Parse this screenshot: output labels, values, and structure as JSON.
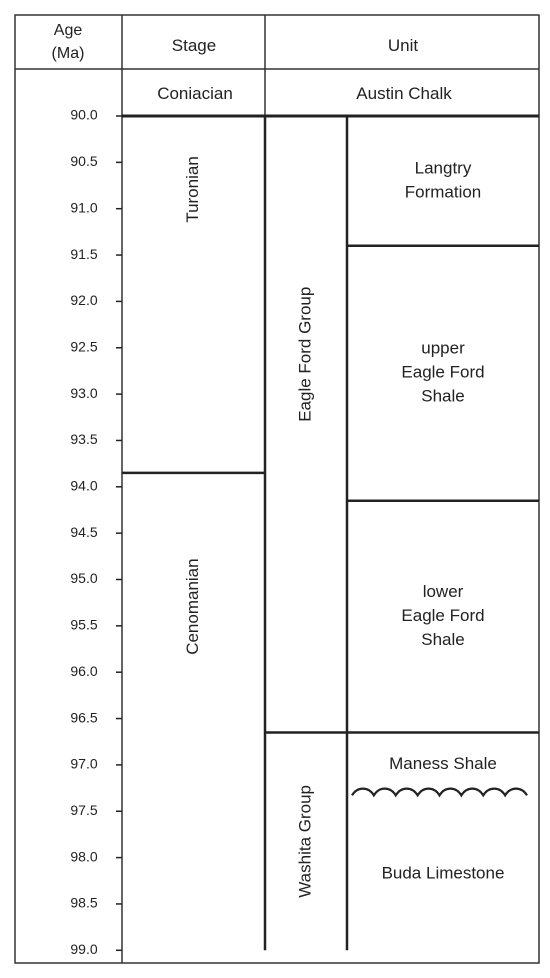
{
  "header": {
    "age_line1": "Age",
    "age_line2": "(Ma)",
    "stage": "Stage",
    "unit": "Unit"
  },
  "top_row": {
    "stage": "Coniacian",
    "unit": "Austin Chalk"
  },
  "age_axis": {
    "min": 90.0,
    "max": 99.0,
    "step": 0.5,
    "ticks": [
      "90.0",
      "90.5",
      "91.0",
      "91.5",
      "92.0",
      "92.5",
      "93.0",
      "93.5",
      "94.0",
      "94.5",
      "95.0",
      "95.5",
      "96.0",
      "96.5",
      "97.0",
      "97.5",
      "98.0",
      "98.5",
      "99.0"
    ]
  },
  "stages": [
    {
      "name": "Turonian",
      "top": 90.0,
      "base": 93.85
    },
    {
      "name": "Cenomanian",
      "top": 93.85,
      "base": 99.0
    }
  ],
  "groups": [
    {
      "name": "Eagle Ford Group",
      "top": 90.0,
      "base": 96.65
    },
    {
      "name": "Washita Group",
      "top": 96.65,
      "base": 99.0
    }
  ],
  "formations": [
    {
      "lines": [
        "Langtry",
        "Formation"
      ],
      "top": 90.0,
      "base": 91.4
    },
    {
      "lines": [
        "upper",
        "Eagle Ford",
        "Shale"
      ],
      "top": 91.4,
      "base": 94.15
    },
    {
      "lines": [
        "lower",
        "Eagle Ford",
        "Shale"
      ],
      "top": 94.15,
      "base": 96.65
    },
    {
      "lines": [
        "Maness Shale"
      ],
      "top": 96.65,
      "base": 97.35,
      "base_style": "wavy"
    },
    {
      "lines": [
        "Buda Limestone"
      ],
      "top": 97.35,
      "base": 99.0
    }
  ]
}
